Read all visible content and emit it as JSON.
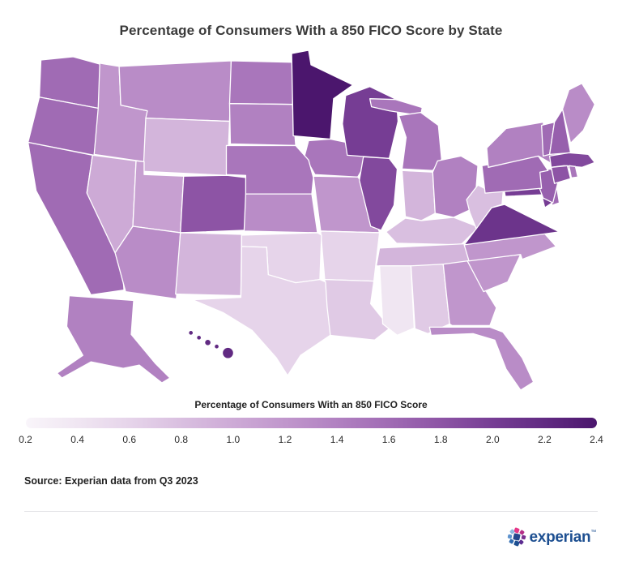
{
  "page": {
    "source": "Source: Experian data from Q3 2023",
    "brand": {
      "name": "experian",
      "trademark": "™",
      "text_color": "#1d4f91",
      "icon_colors": [
        "#e63888",
        "#b52e87",
        "#7a2f8f",
        "#5c2d91",
        "#1d4f91",
        "#2f6bb0",
        "#5e93ce",
        "#8fb8e0",
        "#26478d"
      ]
    }
  },
  "chart_data": {
    "type": "heatmap",
    "subtype": "us-state-choropleth",
    "title": "Percentage of Consumers With a 850 FICO Score by State",
    "legend_title": "Percentage of Consumers With an 850 FICO Score",
    "unit": "%",
    "scale": {
      "min": 0.2,
      "max": 2.4,
      "ticks": [
        "0.2",
        "0.4",
        "0.6",
        "0.8",
        "1.0",
        "1.2",
        "1.4",
        "1.6",
        "1.8",
        "2.0",
        "2.2",
        "2.4"
      ],
      "stops": [
        {
          "value": 0.2,
          "color": "#f9f5fa"
        },
        {
          "value": 0.4,
          "color": "#f0e6f2"
        },
        {
          "value": 0.6,
          "color": "#e6d4ea"
        },
        {
          "value": 0.8,
          "color": "#d9bfe0"
        },
        {
          "value": 1.0,
          "color": "#cdaad6"
        },
        {
          "value": 1.2,
          "color": "#c096cc"
        },
        {
          "value": 1.4,
          "color": "#b181c1"
        },
        {
          "value": 1.6,
          "color": "#a06bb4"
        },
        {
          "value": 1.8,
          "color": "#8d54a5"
        },
        {
          "value": 2.0,
          "color": "#763d94"
        },
        {
          "value": 2.2,
          "color": "#612a82"
        },
        {
          "value": 2.4,
          "color": "#4b166d"
        }
      ]
    },
    "states": [
      {
        "code": "AL",
        "name": "Alabama",
        "value": 0.7
      },
      {
        "code": "AK",
        "name": "Alaska",
        "value": 1.4
      },
      {
        "code": "AZ",
        "name": "Arizona",
        "value": 1.3
      },
      {
        "code": "AR",
        "name": "Arkansas",
        "value": 0.6
      },
      {
        "code": "CA",
        "name": "California",
        "value": 1.6
      },
      {
        "code": "CO",
        "name": "Colorado",
        "value": 1.8
      },
      {
        "code": "CT",
        "name": "Connecticut",
        "value": 1.8
      },
      {
        "code": "DE",
        "name": "Delaware",
        "value": 1.6
      },
      {
        "code": "FL",
        "name": "Florida",
        "value": 1.3
      },
      {
        "code": "GA",
        "name": "Georgia",
        "value": 1.2
      },
      {
        "code": "HI",
        "name": "Hawaii",
        "value": 2.2
      },
      {
        "code": "ID",
        "name": "Idaho",
        "value": 1.2
      },
      {
        "code": "IL",
        "name": "Illinois",
        "value": 1.9
      },
      {
        "code": "IN",
        "name": "Indiana",
        "value": 0.9
      },
      {
        "code": "IA",
        "name": "Iowa",
        "value": 1.5
      },
      {
        "code": "KS",
        "name": "Kansas",
        "value": 1.3
      },
      {
        "code": "KY",
        "name": "Kentucky",
        "value": 0.8
      },
      {
        "code": "LA",
        "name": "Louisiana",
        "value": 0.7
      },
      {
        "code": "ME",
        "name": "Maine",
        "value": 1.3
      },
      {
        "code": "MD",
        "name": "Maryland",
        "value": 2.0
      },
      {
        "code": "MA",
        "name": "Massachusetts",
        "value": 1.9
      },
      {
        "code": "MI",
        "name": "Michigan",
        "value": 1.5
      },
      {
        "code": "MN",
        "name": "Minnesota",
        "value": 2.4
      },
      {
        "code": "MS",
        "name": "Mississippi",
        "value": 0.4
      },
      {
        "code": "MO",
        "name": "Missouri",
        "value": 1.2
      },
      {
        "code": "MT",
        "name": "Montana",
        "value": 1.3
      },
      {
        "code": "NE",
        "name": "Nebraska",
        "value": 1.5
      },
      {
        "code": "NV",
        "name": "Nevada",
        "value": 1.0
      },
      {
        "code": "NH",
        "name": "New Hampshire",
        "value": 1.7
      },
      {
        "code": "NJ",
        "name": "New Jersey",
        "value": 1.7
      },
      {
        "code": "NM",
        "name": "New Mexico",
        "value": 0.9
      },
      {
        "code": "NY",
        "name": "New York",
        "value": 1.4
      },
      {
        "code": "NC",
        "name": "North Carolina",
        "value": 1.2
      },
      {
        "code": "ND",
        "name": "North Dakota",
        "value": 1.5
      },
      {
        "code": "OH",
        "name": "Ohio",
        "value": 1.4
      },
      {
        "code": "OK",
        "name": "Oklahoma",
        "value": 0.6
      },
      {
        "code": "OR",
        "name": "Oregon",
        "value": 1.6
      },
      {
        "code": "PA",
        "name": "Pennsylvania",
        "value": 1.6
      },
      {
        "code": "RI",
        "name": "Rhode Island",
        "value": 1.5
      },
      {
        "code": "SC",
        "name": "South Carolina",
        "value": 1.2
      },
      {
        "code": "SD",
        "name": "South Dakota",
        "value": 1.4
      },
      {
        "code": "TN",
        "name": "Tennessee",
        "value": 0.9
      },
      {
        "code": "TX",
        "name": "Texas",
        "value": 0.6
      },
      {
        "code": "UT",
        "name": "Utah",
        "value": 1.1
      },
      {
        "code": "VT",
        "name": "Vermont",
        "value": 1.6
      },
      {
        "code": "VA",
        "name": "Virginia",
        "value": 2.1
      },
      {
        "code": "WA",
        "name": "Washington",
        "value": 1.6
      },
      {
        "code": "WV",
        "name": "West Virginia",
        "value": 0.8
      },
      {
        "code": "WI",
        "name": "Wisconsin",
        "value": 2.0
      },
      {
        "code": "WY",
        "name": "Wyoming",
        "value": 0.9
      }
    ]
  }
}
